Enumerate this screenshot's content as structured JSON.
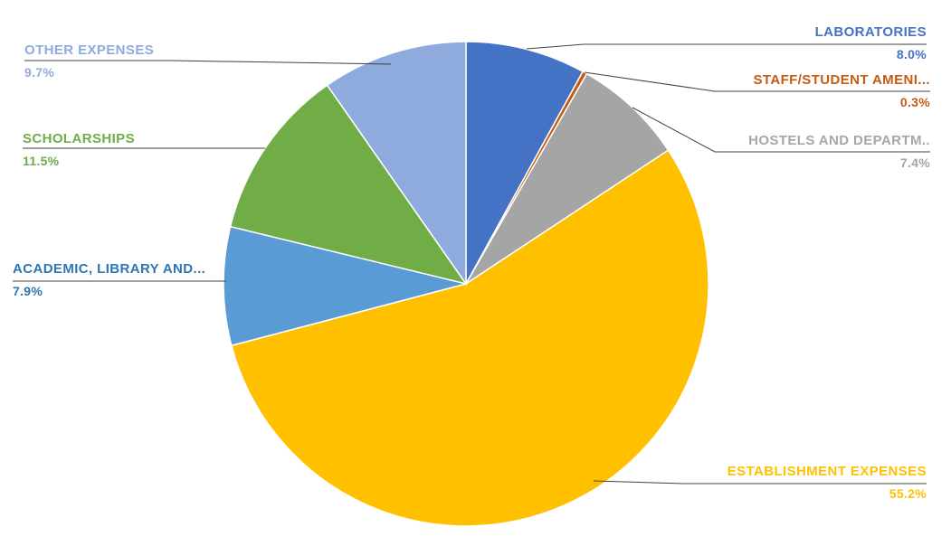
{
  "chart": {
    "background_color": "#ffffff",
    "leader_line_color": "#404040",
    "slice_border_color": "#ffffff"
  },
  "chart_data": {
    "type": "pie",
    "title": "",
    "unit": "%",
    "total": 100.0,
    "start_angle_deg": 0,
    "direction": "clockwise",
    "legend": "none",
    "label_style": "outside-with-leader-lines",
    "slices": [
      {
        "label": "LABORATORIES",
        "value": 8.0,
        "pct_label": "8.0%",
        "color": "#4472C4",
        "label_color": "#4472C4"
      },
      {
        "label": "STAFF/STUDENT AMENI...",
        "value": 0.3,
        "pct_label": "0.3%",
        "color": "#C55A11",
        "label_color": "#C55A11"
      },
      {
        "label": "HOSTELS AND DEPARTM..",
        "value": 7.4,
        "pct_label": "7.4%",
        "color": "#A5A5A5",
        "label_color": "#A6A6A6"
      },
      {
        "label": "ESTABLISHMENT EXPENSES",
        "value": 55.2,
        "pct_label": "55.2%",
        "color": "#FFC000",
        "label_color": "#FFC000"
      },
      {
        "label": "ACADEMIC, LIBRARY AND...",
        "value": 7.9,
        "pct_label": "7.9%",
        "color": "#5B9BD5",
        "label_color": "#2E75B6"
      },
      {
        "label": "SCHOLARSHIPS",
        "value": 11.5,
        "pct_label": "11.5%",
        "color": "#70AD47",
        "label_color": "#70AD47"
      },
      {
        "label": "OTHER EXPENSES",
        "value": 9.7,
        "pct_label": "9.7%",
        "color": "#8FAADC",
        "label_color": "#8FAADC"
      }
    ]
  }
}
